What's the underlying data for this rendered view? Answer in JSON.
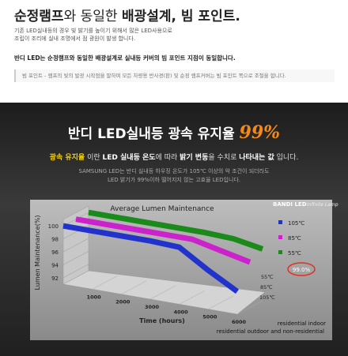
{
  "header": {
    "title": [
      "순정램프",
      "와 동일한 ",
      "배광설계, 빔 포인트."
    ],
    "lines": [
      "기존 LED실내등의 경우 빛 밝기를 높이기 위해서 많은 LED사용으로",
      "조립이 조리에 실내 조명에서 점 광원이 발생 합니다."
    ],
    "highlight": "반디 LED는 순정램프와 동일한 배광설계로 실내등 커버의 빔 포인트 지점이 동일합니다.",
    "note": "빔 포인트 - 램프의 빛의 발광 시작점을 말하며 모든 차량용 반사경(판) 및 순정 램프커버는 빔 포인트 쪽으로 조절을 합니다."
  },
  "banner": {
    "heading": "반디 LED실내등 광속 유지율",
    "heading_value": "99%",
    "desc": [
      "광속 유지율",
      " 이란 ",
      "LED 실내등 온도",
      "에 따라 ",
      "밝기 변동",
      "을 수치로 ",
      "나타내는 값",
      " 입니다."
    ],
    "lines": [
      "SAMSUNG LED는 반디 실내등 하우징 온도가 105℃ 이상의 악 조건이 되더라도",
      "LED 밝기가 99%이하 떨어지지 않는 고효율 LED입니다."
    ]
  },
  "chart_data": {
    "type": "line3d",
    "title": "Average Lumen Maintenance",
    "logo": "BANDI LED",
    "logo_sub": "Infinite Lamp",
    "x_label": "Time (hours)",
    "y_label": "Lumen Maintenance(%)",
    "x": [
      0,
      1000,
      2000,
      3000,
      4000,
      5000,
      6000
    ],
    "xlim": [
      0,
      6000
    ],
    "xticks": [
      1000,
      2000,
      3000,
      4000,
      5000,
      6000
    ],
    "ylim": [
      91,
      101
    ],
    "yticks": [
      92,
      94,
      96,
      98,
      100
    ],
    "series": [
      {
        "name": "105℃",
        "color": "#2233cc",
        "values": [
          100,
          100,
          100,
          100,
          99.8,
          97,
          94.5
        ]
      },
      {
        "name": "85℃",
        "color": "#cc22cc",
        "values": [
          100,
          100,
          100,
          100,
          100,
          99,
          98
        ]
      },
      {
        "name": "55℃",
        "color": "#1a8a1a",
        "values": [
          100,
          100,
          100,
          100,
          100,
          99.8,
          99
        ]
      }
    ],
    "depth_labels": [
      "55℃",
      "85℃",
      "105℃"
    ],
    "annotation": "99.0%",
    "footer": [
      "residential indoor",
      "residential outdoor and non-residential"
    ]
  }
}
